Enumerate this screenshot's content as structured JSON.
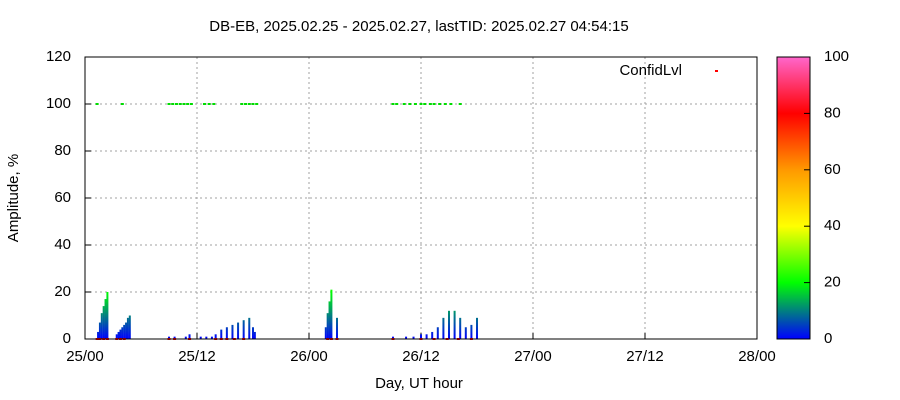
{
  "chart_data": {
    "type": "bar",
    "title": "DB-EB, 2025.02.25 - 2025.02.27, lastTID: 2025.02.27 04:54:15",
    "xlabel": "Day, UT hour",
    "ylabel": "Amplitude, %",
    "xlim": [
      0,
      72
    ],
    "xticks": [
      {
        "value": 0,
        "label": "25/00"
      },
      {
        "value": 12,
        "label": "25/12"
      },
      {
        "value": 24,
        "label": "26/00"
      },
      {
        "value": 36,
        "label": "26/12"
      },
      {
        "value": 48,
        "label": "27/00"
      },
      {
        "value": 60,
        "label": "27/12"
      },
      {
        "value": 72,
        "label": "28/00"
      }
    ],
    "ylim": [
      0,
      120
    ],
    "yticks": [
      0,
      20,
      40,
      60,
      80,
      100,
      120
    ],
    "grid": true,
    "x": [
      1.4,
      1.6,
      1.8,
      2.0,
      2.2,
      2.4,
      3.4,
      3.6,
      3.8,
      4.0,
      4.2,
      4.4,
      4.6,
      4.8,
      9.0,
      9.6,
      10.8,
      11.2,
      12.4,
      13.0,
      13.6,
      14.0,
      14.6,
      15.2,
      15.8,
      16.4,
      17.0,
      17.6,
      18.0,
      18.2,
      25.8,
      26.0,
      26.2,
      26.4,
      27.0,
      33.0,
      34.4,
      35.2,
      36.0,
      36.6,
      37.2,
      37.8,
      38.4,
      39.0,
      39.6,
      40.2,
      40.8,
      41.4,
      42.0
    ],
    "values": [
      3,
      7,
      11,
      14,
      17,
      20,
      2,
      3,
      4,
      5,
      6,
      7,
      9,
      10,
      1,
      1,
      1,
      2,
      1,
      1,
      1,
      2,
      4,
      5,
      6,
      7,
      8,
      9,
      5,
      3,
      5,
      11,
      16,
      21,
      9,
      1,
      1,
      1,
      2,
      2,
      3,
      5,
      9,
      12,
      12,
      9,
      5,
      6,
      9
    ],
    "palette": [
      "#0000ff",
      "#00ff00",
      "#ffff00",
      "#ff9900",
      "#ff0000",
      "#ff66cc"
    ],
    "cblim": [
      0,
      100
    ],
    "cbticks": [
      0,
      20,
      40,
      60,
      80,
      100
    ],
    "legend": "top-right",
    "series": [
      {
        "name": "ConfidLvl",
        "color": "#ff0000",
        "x": [
          1.3,
          1.6,
          2.0,
          2.4,
          3.4,
          3.8,
          4.2,
          9.0,
          9.6,
          11.2,
          14.0,
          14.6,
          15.2,
          16.0,
          17.0,
          26.0,
          26.4,
          27.0,
          33.0,
          36.0,
          37.4,
          38.8,
          40.0,
          41.4
        ],
        "values": [
          0,
          0,
          0,
          0,
          0,
          0,
          0,
          0,
          0,
          0,
          0,
          0,
          0,
          0,
          0,
          0,
          0,
          0,
          0,
          0,
          0,
          0,
          0,
          0
        ]
      },
      {
        "color": "#00dd00",
        "x": [
          1.3,
          4.0,
          9.0,
          9.4,
          9.8,
          10.2,
          10.6,
          11.0,
          11.4,
          12.8,
          13.3,
          13.8,
          16.8,
          17.2,
          17.6,
          18.0,
          18.4,
          33.0,
          33.4,
          34.2,
          34.8,
          35.4,
          36.0,
          36.4,
          37.0,
          37.4,
          38.0,
          38.6,
          39.2,
          40.2
        ],
        "values": [
          100,
          100,
          100,
          100,
          100,
          100,
          100,
          100,
          100,
          100,
          100,
          100,
          100,
          100,
          100,
          100,
          100,
          100,
          100,
          100,
          100,
          100,
          100,
          100,
          100,
          100,
          100,
          100,
          100,
          100
        ]
      }
    ]
  }
}
